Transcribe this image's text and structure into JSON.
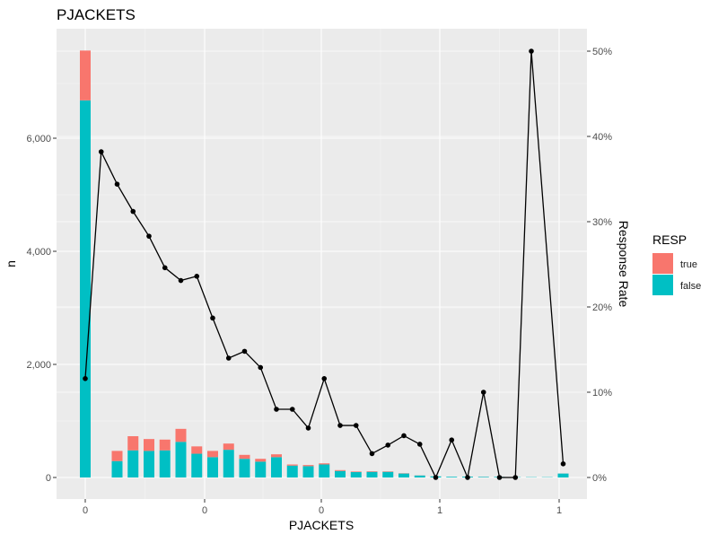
{
  "chart_data": {
    "type": "bar",
    "title": "PJACKETS",
    "xlabel": "PJACKETS",
    "ylabel": "n",
    "y2label": "Response Rate",
    "ylim": [
      0,
      7900
    ],
    "y2lim": [
      0,
      52
    ],
    "x_tick_labels": [
      "0",
      "0",
      "0",
      "1",
      "1"
    ],
    "y_ticks": [
      0,
      2000,
      4000,
      6000
    ],
    "y_tick_labels": [
      "0",
      "2,000",
      "4,000",
      "6,000"
    ],
    "y2_ticks": [
      0,
      10,
      20,
      30,
      40,
      50
    ],
    "y2_tick_labels": [
      "0%",
      "10%",
      "20%",
      "30%",
      "40%",
      "50%"
    ],
    "grid": true,
    "legend": {
      "title": "RESP",
      "position": "right",
      "entries": [
        {
          "label": "true",
          "color": "#f8766d"
        },
        {
          "label": "false",
          "color": "#00bfc4"
        }
      ]
    },
    "stacked_series": [
      {
        "name": "false",
        "color": "#00bfc4",
        "values": [
          6670,
          0,
          290,
          480,
          470,
          480,
          630,
          420,
          360,
          490,
          330,
          280,
          360,
          210,
          200,
          230,
          115,
          95,
          100,
          100,
          70,
          35,
          20,
          12,
          15,
          10,
          10,
          5,
          5,
          5,
          70
        ]
      },
      {
        "name": "true",
        "color": "#f8766d",
        "values": [
          880,
          0,
          180,
          250,
          210,
          190,
          230,
          130,
          110,
          110,
          70,
          50,
          50,
          20,
          20,
          20,
          15,
          10,
          10,
          8,
          5,
          2,
          1,
          0,
          1,
          1,
          0,
          0,
          0,
          0,
          1
        ]
      }
    ],
    "line_series": {
      "name": "Response Rate",
      "unit": "%",
      "values": [
        11.6,
        38.2,
        34.4,
        31.2,
        28.3,
        24.6,
        23.1,
        23.6,
        18.7,
        14.0,
        14.8,
        12.9,
        8.0,
        8.0,
        5.8,
        11.6,
        6.1,
        6.1,
        2.8,
        3.8,
        4.9,
        3.9,
        0.0,
        4.4,
        0.0,
        10.0,
        0.0,
        0.0,
        50.0,
        1.6
      ]
    }
  }
}
